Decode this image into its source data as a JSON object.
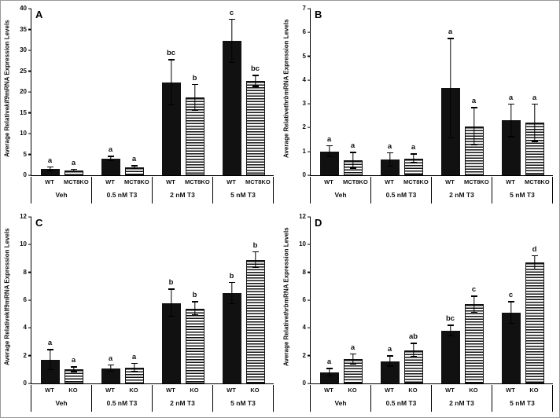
{
  "colors": {
    "bar_fill": "#111111",
    "axis": "#000000",
    "figure_border": "#999999",
    "background": "#ffffff"
  },
  "chart_data": [
    {
      "type": "bar",
      "panel": "A",
      "ylabel_prefix": "Average Relative ",
      "gene": "klf9",
      "gene_italic": true,
      "ylabel_suffix": " mRNA Expression Levels",
      "ylim": [
        0,
        40
      ],
      "yticks": [
        0,
        5,
        10,
        15,
        20,
        25,
        30,
        35,
        40
      ],
      "groups": [
        "Veh",
        "0.5 nM T3",
        "2 nM T3",
        "5 nM T3"
      ],
      "series": [
        {
          "name": "WT",
          "pattern": "solid",
          "values": [
            1.5,
            4.0,
            22.3,
            32.2
          ],
          "errors": [
            0.5,
            0.6,
            5.5,
            5.3
          ],
          "letters": [
            "a",
            "a",
            "bc",
            "c"
          ]
        },
        {
          "name": "MCT8KO",
          "pattern": "stripes",
          "values": [
            1.2,
            1.9,
            18.6,
            22.6
          ],
          "errors": [
            0.3,
            0.4,
            3.2,
            1.4
          ],
          "letters": [
            "a",
            "a",
            "b",
            "bc"
          ]
        }
      ]
    },
    {
      "type": "bar",
      "panel": "B",
      "ylabel_prefix": "Average Relative ",
      "gene": "thrb",
      "gene_italic": true,
      "ylabel_suffix": " mRNA Expression Levels",
      "ylim": [
        0,
        7
      ],
      "yticks": [
        0,
        1,
        2,
        3,
        4,
        5,
        6,
        7
      ],
      "groups": [
        "Veh",
        "0.5 nM T3",
        "2 nM T3",
        "5 nM T3"
      ],
      "series": [
        {
          "name": "WT",
          "pattern": "solid",
          "values": [
            1.0,
            0.65,
            3.65,
            2.3
          ],
          "errors": [
            0.25,
            0.3,
            2.1,
            0.7
          ],
          "letters": [
            "a",
            "a",
            "a",
            "a"
          ]
        },
        {
          "name": "MCT8KO",
          "pattern": "stripes",
          "values": [
            0.62,
            0.7,
            2.05,
            2.2
          ],
          "errors": [
            0.35,
            0.2,
            0.8,
            0.8
          ],
          "letters": [
            "a",
            "a",
            "a",
            "a"
          ]
        }
      ]
    },
    {
      "type": "bar",
      "panel": "C",
      "ylabel_prefix": "Average Relative ",
      "gene": "klf9",
      "gene_italic": false,
      "ylabel_suffix": " mRNA Expression Levels",
      "ylim": [
        0,
        12
      ],
      "yticks": [
        0,
        2,
        4,
        6,
        8,
        10,
        12
      ],
      "groups": [
        "Veh",
        "0.5 nM T3",
        "2 nM T3",
        "5 nM T3"
      ],
      "series": [
        {
          "name": "WT",
          "pattern": "solid",
          "values": [
            1.7,
            1.1,
            5.8,
            6.5
          ],
          "errors": [
            0.75,
            0.25,
            1.0,
            0.8
          ],
          "letters": [
            "a",
            "a",
            "b",
            "b"
          ]
        },
        {
          "name": "KO",
          "pattern": "stripes",
          "values": [
            1.0,
            1.15,
            5.4,
            8.9
          ],
          "errors": [
            0.2,
            0.3,
            0.5,
            0.6
          ],
          "letters": [
            "a",
            "a",
            "b",
            "b"
          ]
        }
      ]
    },
    {
      "type": "bar",
      "panel": "D",
      "ylabel_prefix": "Average Relative ",
      "gene": "thrb",
      "gene_italic": true,
      "ylabel_suffix": " mRNA Expression Levels",
      "ylim": [
        0,
        12
      ],
      "yticks": [
        0,
        2,
        4,
        6,
        8,
        10,
        12
      ],
      "groups": [
        "Veh",
        "0.5 nM T3",
        "2 nM T3",
        "5 nM T3"
      ],
      "series": [
        {
          "name": "WT",
          "pattern": "solid",
          "values": [
            0.8,
            1.6,
            3.8,
            5.1
          ],
          "errors": [
            0.3,
            0.4,
            0.4,
            0.8
          ],
          "letters": [
            "a",
            "a",
            "bc",
            "c"
          ]
        },
        {
          "name": "KO",
          "pattern": "stripes",
          "values": [
            1.75,
            2.4,
            5.7,
            8.7
          ],
          "errors": [
            0.4,
            0.5,
            0.6,
            0.5
          ],
          "letters": [
            "a",
            "ab",
            "c",
            "d"
          ]
        }
      ]
    }
  ]
}
